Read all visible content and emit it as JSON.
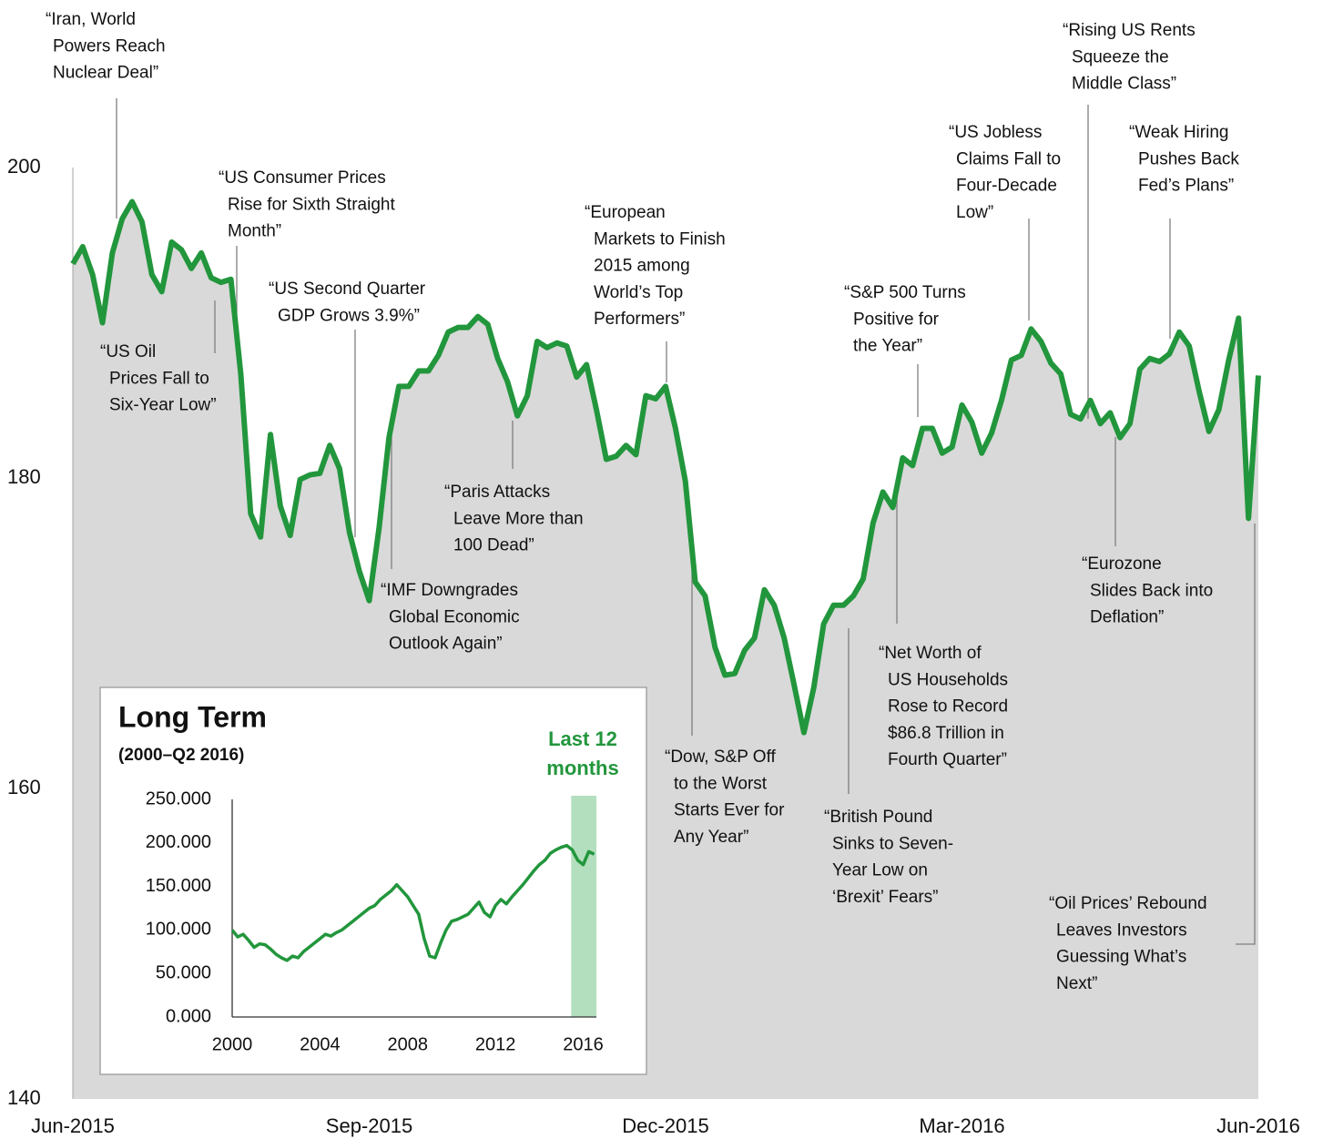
{
  "chart_data": [
    {
      "type": "area-line",
      "color": "#22963c",
      "fill_color": "#d9d9d9",
      "ylim": [
        140,
        200
      ],
      "yticks": [
        140,
        160,
        180,
        200
      ],
      "categories": [
        "Jun-2015",
        null,
        null,
        null,
        null,
        null,
        null,
        null,
        null,
        null,
        null,
        null,
        null,
        null,
        null,
        null,
        null,
        null,
        null,
        null,
        null,
        null,
        null,
        null,
        null,
        null,
        null,
        null,
        null,
        null,
        "Sep-2015",
        null,
        null,
        null,
        null,
        null,
        null,
        null,
        null,
        null,
        null,
        null,
        null,
        null,
        null,
        null,
        null,
        null,
        null,
        null,
        null,
        null,
        null,
        null,
        null,
        null,
        null,
        null,
        null,
        null,
        "Dec-2015",
        null,
        null,
        null,
        null,
        null,
        null,
        null,
        null,
        null,
        null,
        null,
        null,
        null,
        null,
        null,
        null,
        null,
        null,
        null,
        null,
        null,
        null,
        null,
        null,
        null,
        null,
        null,
        null,
        null,
        "Mar-2016",
        null,
        null,
        null,
        null,
        null,
        null,
        null,
        null,
        null,
        null,
        null,
        null,
        null,
        null,
        null,
        null,
        null,
        null,
        null,
        null,
        null,
        null,
        null,
        null,
        null,
        null,
        null,
        null,
        null,
        "Jun-2016"
      ],
      "values": [
        193.8,
        194.9,
        193.1,
        190.0,
        194.5,
        196.7,
        197.8,
        196.5,
        193.1,
        192.0,
        195.2,
        194.7,
        193.5,
        194.5,
        192.9,
        192.6,
        192.8,
        186.7,
        177.7,
        176.2,
        182.8,
        178.2,
        176.3,
        179.9,
        180.2,
        180.3,
        182.1,
        180.6,
        176.5,
        174.0,
        172.1,
        176.8,
        182.6,
        185.9,
        185.9,
        186.9,
        186.9,
        187.9,
        189.4,
        189.7,
        189.7,
        190.4,
        189.9,
        187.7,
        186.2,
        184.0,
        185.3,
        188.8,
        188.4,
        188.7,
        188.5,
        186.5,
        187.3,
        184.4,
        181.2,
        181.4,
        182.1,
        181.5,
        185.3,
        185.1,
        185.9,
        183.2,
        179.8,
        173.3,
        172.4,
        169.1,
        167.3,
        167.4,
        168.9,
        169.7,
        172.8,
        171.8,
        169.7,
        166.7,
        163.6,
        166.5,
        170.6,
        171.8,
        171.8,
        172.4,
        173.5,
        177.1,
        179.1,
        178.1,
        181.3,
        180.8,
        183.2,
        183.2,
        181.6,
        182.0,
        184.7,
        183.6,
        181.6,
        182.9,
        185.0,
        187.6,
        187.9,
        189.6,
        188.8,
        187.4,
        186.7,
        184.1,
        183.8,
        185.0,
        183.5,
        184.2,
        182.6,
        183.5,
        187.0,
        187.7,
        187.5,
        188.0,
        189.4,
        188.5,
        185.6,
        183.0,
        184.4,
        187.6,
        190.3,
        177.4,
        186.6
      ],
      "annotations": [
        [
          "“Iran, World",
          "Powers Reach",
          "Nuclear Deal”"
        ],
        [
          "“US Oil",
          "Prices Fall to",
          "Six-Year Low”"
        ],
        [
          "“US Consumer Prices",
          "Rise for Sixth Straight",
          "Month”"
        ],
        [
          "“US Second Quarter",
          "GDP Grows 3.9%”"
        ],
        [
          "“IMF Downgrades",
          "Global Economic",
          "Outlook Again”"
        ],
        [
          "“Paris Attacks",
          "Leave More than",
          "100 Dead”"
        ],
        [
          "“European",
          "Markets to Finish",
          "2015 among",
          "World’s Top",
          "Performers”"
        ],
        [
          "“Dow, S&P Off",
          "to the Worst",
          "Starts Ever for",
          "Any Year”"
        ],
        [
          "“British Pound",
          "Sinks to Seven-",
          "Year Low on",
          "‘Brexit’ Fears”"
        ],
        [
          "“Net Worth of",
          "US Households",
          "Rose to Record",
          "$86.8 Trillion in",
          "Fourth Quarter”"
        ],
        [
          "“S&P 500 Turns",
          "Positive for",
          "the Year”"
        ],
        [
          "“US Jobless",
          "Claims Fall to",
          "Four-Decade",
          "Low”"
        ],
        [
          "“Rising US Rents",
          "Squeeze the",
          "Middle Class”"
        ],
        [
          "“Weak Hiring",
          "Pushes Back",
          "Fed’s Plans”"
        ],
        [
          "“Eurozone",
          "Slides Back into",
          "Deflation”"
        ],
        [
          "“Oil Prices’ Rebound",
          "Leaves Investors",
          "Guessing What’s",
          "Next”"
        ]
      ]
    },
    {
      "type": "line",
      "title": "Long Term",
      "subtitle": "(2000–Q2 2016)",
      "highlight_label": [
        "Last 12",
        "months"
      ],
      "highlight": [
        2015.45,
        2016.6
      ],
      "highlight_color": "#b3dfbe",
      "color": "#22963c",
      "xlim": [
        2000,
        2016.6
      ],
      "xticks": [
        2000,
        2004,
        2008,
        2012,
        2016
      ],
      "ylim": [
        0,
        250
      ],
      "yticks": [
        {
          "value": 0,
          "label": "0.000"
        },
        {
          "value": 50,
          "label": "50.000"
        },
        {
          "value": 100,
          "label": "100.000"
        },
        {
          "value": 150,
          "label": "150.000"
        },
        {
          "value": 200,
          "label": "200.000"
        },
        {
          "value": 250,
          "label": "250.000"
        }
      ],
      "x": [
        2000,
        2000.25,
        2000.5,
        2000.75,
        2001,
        2001.25,
        2001.5,
        2001.75,
        2002,
        2002.25,
        2002.5,
        2002.75,
        2003,
        2003.25,
        2003.5,
        2003.75,
        2004,
        2004.25,
        2004.5,
        2004.75,
        2005,
        2005.25,
        2005.5,
        2005.75,
        2006,
        2006.25,
        2006.5,
        2006.75,
        2007,
        2007.25,
        2007.5,
        2007.75,
        2008,
        2008.25,
        2008.5,
        2008.75,
        2009,
        2009.25,
        2009.5,
        2009.75,
        2010,
        2010.25,
        2010.5,
        2010.75,
        2011,
        2011.25,
        2011.5,
        2011.75,
        2012,
        2012.25,
        2012.5,
        2012.75,
        2013,
        2013.25,
        2013.5,
        2013.75,
        2014,
        2014.25,
        2014.5,
        2014.75,
        2015,
        2015.25,
        2015.5,
        2015.75,
        2016,
        2016.25,
        2016.5
      ],
      "values": [
        100,
        92,
        95,
        88,
        80,
        84,
        83,
        78,
        72,
        68,
        65,
        70,
        68,
        75,
        80,
        85,
        90,
        95,
        93,
        97,
        100,
        105,
        110,
        115,
        120,
        125,
        128,
        135,
        140,
        145,
        152,
        145,
        138,
        128,
        118,
        90,
        70,
        68,
        85,
        100,
        110,
        112,
        115,
        118,
        125,
        132,
        120,
        115,
        128,
        135,
        130,
        138,
        145,
        152,
        160,
        168,
        175,
        180,
        188,
        192,
        195,
        197,
        192,
        180,
        175,
        190,
        187
      ]
    }
  ]
}
